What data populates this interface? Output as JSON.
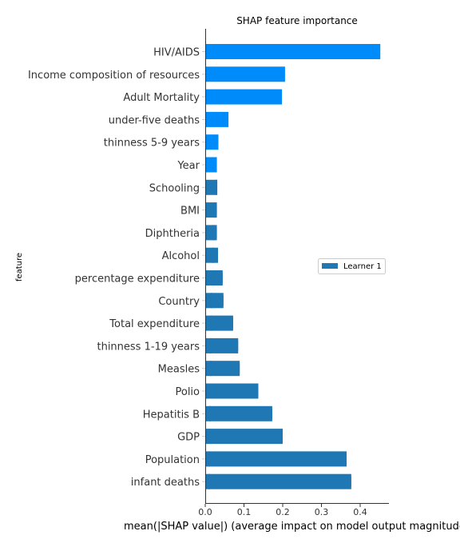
{
  "chart_data": {
    "type": "bar",
    "orientation": "horizontal",
    "title": "SHAP feature importance",
    "xlabel": "mean(|SHAP value|) (average impact on model output magnitude)",
    "ylabel": "feature",
    "xlim": [
      0,
      0.475
    ],
    "xticks": [
      "0.0",
      "0.1",
      "0.2",
      "0.3",
      "0.4"
    ],
    "grid": false,
    "legend_position": "right",
    "categories": [
      "HIV/AIDS",
      "Income composition of resources",
      "Adult Mortality",
      "under-five deaths ",
      "thinness 5-9 years",
      "Year",
      "Schooling",
      "BMI ",
      "Diphtheria ",
      "Alcohol",
      "percentage expenditure",
      "Country",
      "Total expenditure",
      "thinness  1-19 years",
      "Measles ",
      "Polio",
      "Hepatitis B",
      "GDP",
      "Population",
      "infant deaths"
    ],
    "series": [
      {
        "name": "",
        "color": "#008bfb",
        "values": [
          0.452,
          0.206,
          0.198,
          0.06,
          0.034,
          0.03,
          0.027,
          0.022,
          0.019,
          0.018,
          0.016,
          0.014,
          0.013,
          0.012,
          0.012,
          0.011,
          0.01,
          0.009,
          0.008,
          0.008
        ]
      },
      {
        "name": "Learner 1",
        "color": "#1f77b4",
        "values": [
          0,
          0,
          0,
          0,
          0,
          0,
          0.03,
          0.03,
          0.03,
          0.033,
          0.045,
          0.047,
          0.072,
          0.085,
          0.089,
          0.137,
          0.173,
          0.2,
          0.365,
          0.377
        ]
      }
    ]
  }
}
